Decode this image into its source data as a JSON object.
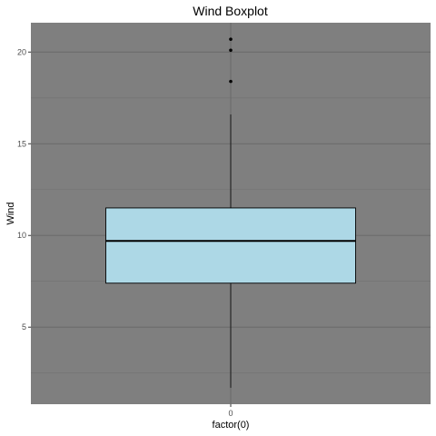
{
  "chart_data": {
    "type": "boxplot",
    "title": "Wind Boxplot",
    "xlabel": "factor(0)",
    "ylabel": "Wind",
    "categories": [
      "0"
    ],
    "ylim": [
      0.8,
      21.6
    ],
    "y_ticks": [
      5,
      10,
      15,
      20
    ],
    "y_minor_ticks": [
      2.5,
      7.5,
      12.5,
      17.5
    ],
    "boxes": [
      {
        "category": "0",
        "whisker_low": 1.7,
        "q1": 7.4,
        "median": 9.7,
        "q3": 11.5,
        "whisker_high": 16.6,
        "outliers": [
          18.4,
          20.1,
          20.7
        ]
      }
    ],
    "grid": true,
    "legend": "none",
    "colors": {
      "panel_background": "#7f7f7f",
      "grid_major": "#6b6b6b",
      "grid_minor": "#727272",
      "box_fill": "#add8e6",
      "box_stroke": "#000000",
      "outlier": "#000000"
    }
  }
}
